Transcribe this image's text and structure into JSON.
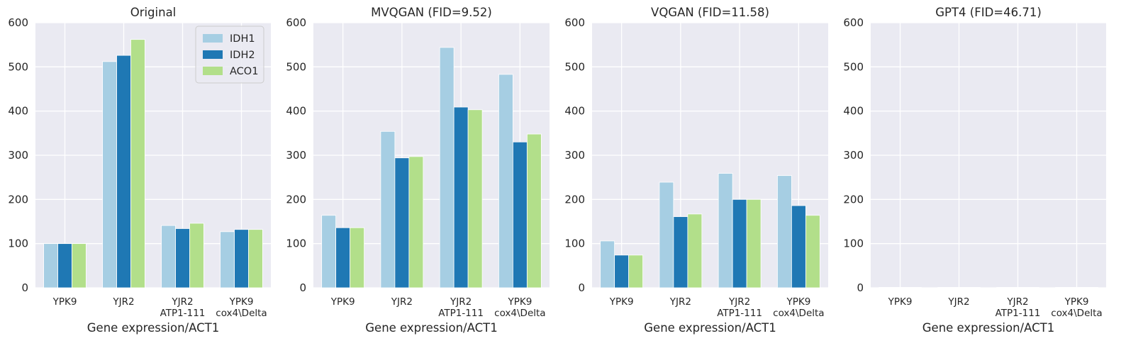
{
  "chart_data": [
    {
      "type": "bar",
      "title": "Original",
      "xlabel": "Gene expression/ACT1",
      "ylabel": "",
      "ylim": [
        0,
        600
      ],
      "yticks": [
        "0",
        "100",
        "200",
        "300",
        "400",
        "500",
        "600"
      ],
      "categories": [
        [
          "YPK9"
        ],
        [
          "YJR2"
        ],
        [
          "YJR2",
          "ATP1-111"
        ],
        [
          "YPK9",
          "cox4\\Delta"
        ]
      ],
      "series": [
        {
          "name": "IDH1",
          "values": [
            100,
            512,
            141,
            127
          ]
        },
        {
          "name": "IDH2",
          "values": [
            100,
            526,
            134,
            132
          ]
        },
        {
          "name": "ACO1",
          "values": [
            100,
            562,
            146,
            132
          ]
        }
      ],
      "legend": "top-right"
    },
    {
      "type": "bar",
      "title": "MVQGAN (FID=9.52)",
      "xlabel": "Gene expression/ACT1",
      "ylabel": "",
      "ylim": [
        0,
        600
      ],
      "yticks": [
        "0",
        "100",
        "200",
        "300",
        "400",
        "500",
        "600"
      ],
      "categories": [
        [
          "YPK9"
        ],
        [
          "YJR2"
        ],
        [
          "YJR2",
          "ATP1-111"
        ],
        [
          "YPK9",
          "cox4\\Delta"
        ]
      ],
      "series": [
        {
          "name": "IDH1",
          "values": [
            164,
            354,
            544,
            483
          ]
        },
        {
          "name": "IDH2",
          "values": [
            136,
            294,
            409,
            330
          ]
        },
        {
          "name": "ACO1",
          "values": [
            136,
            297,
            403,
            348
          ]
        }
      ]
    },
    {
      "type": "bar",
      "title": "VQGAN (FID=11.58)",
      "xlabel": "Gene expression/ACT1",
      "ylabel": "",
      "ylim": [
        0,
        600
      ],
      "yticks": [
        "0",
        "100",
        "200",
        "300",
        "400",
        "500",
        "600"
      ],
      "categories": [
        [
          "YPK9"
        ],
        [
          "YJR2"
        ],
        [
          "YJR2",
          "ATP1-111"
        ],
        [
          "YPK9",
          "cox4\\Delta"
        ]
      ],
      "series": [
        {
          "name": "IDH1",
          "values": [
            106,
            239,
            259,
            254
          ]
        },
        {
          "name": "IDH2",
          "values": [
            74,
            161,
            200,
            186
          ]
        },
        {
          "name": "ACO1",
          "values": [
            74,
            167,
            200,
            164
          ]
        }
      ]
    },
    {
      "type": "bar",
      "title": "GPT4 (FID=46.71)",
      "xlabel": "Gene expression/ACT1",
      "ylabel": "",
      "ylim": [
        0,
        600
      ],
      "yticks": [
        "0",
        "100",
        "200",
        "300",
        "400",
        "500",
        "600"
      ],
      "categories": [
        [
          "YPK9"
        ],
        [
          "YJR2"
        ],
        [
          "YJR2",
          "ATP1-111"
        ],
        [
          "YPK9",
          "cox4\\Delta"
        ]
      ],
      "series": [
        {
          "name": "IDH1",
          "values": [
            1,
            1,
            1,
            1
          ]
        },
        {
          "name": "IDH2",
          "values": [
            1,
            1,
            1,
            1
          ]
        },
        {
          "name": "ACO1",
          "values": [
            1,
            1,
            1,
            1
          ]
        }
      ]
    }
  ],
  "colors": {
    "IDH1": "#a6cee3",
    "IDH2": "#1f78b4",
    "ACO1": "#b2df8a",
    "panel_bg": "#eaeaf2",
    "grid": "#ffffff",
    "text": "#262626"
  }
}
